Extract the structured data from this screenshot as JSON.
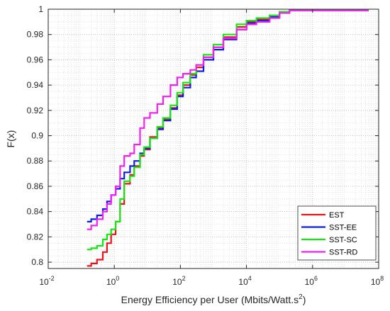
{
  "chart_data": {
    "type": "line",
    "title": "",
    "xlabel": "Energy Efficiency per User (Mbits/Watt.s",
    "xlabel_sup": "2",
    "xlabel_close": ")",
    "ylabel": "F(x)",
    "xscale": "log",
    "xlim": [
      0.01,
      100000000
    ],
    "ylim": [
      0.795,
      1.0
    ],
    "grid": "on (major and minor, dotted)",
    "legend_position": "bottom-right",
    "x_ticks": [
      {
        "value": 0.01,
        "base": "10",
        "exp": "-2"
      },
      {
        "value": 1,
        "base": "10",
        "exp": "0"
      },
      {
        "value": 100,
        "base": "10",
        "exp": "2"
      },
      {
        "value": 10000,
        "base": "10",
        "exp": "4"
      },
      {
        "value": 1000000,
        "base": "10",
        "exp": "6"
      },
      {
        "value": 100000000,
        "base": "10",
        "exp": "8"
      }
    ],
    "y_ticks": [
      {
        "value": 0.8,
        "label": "0.8"
      },
      {
        "value": 0.82,
        "label": "0.82"
      },
      {
        "value": 0.84,
        "label": "0.84"
      },
      {
        "value": 0.86,
        "label": "0.86"
      },
      {
        "value": 0.88,
        "label": "0.88"
      },
      {
        "value": 0.9,
        "label": "0.9"
      },
      {
        "value": 0.92,
        "label": "0.92"
      },
      {
        "value": 0.94,
        "label": "0.94"
      },
      {
        "value": 0.96,
        "label": "0.96"
      },
      {
        "value": 0.98,
        "label": "0.98"
      },
      {
        "value": 1.0,
        "label": "1"
      }
    ],
    "series": [
      {
        "name": "EST",
        "color": "#e8141a",
        "x": [
          0.15,
          0.2,
          0.3,
          0.45,
          0.6,
          0.8,
          1.1,
          1.5,
          2,
          3,
          4,
          6,
          8,
          12,
          20,
          30,
          50,
          80,
          120,
          200,
          300,
          500,
          1000,
          2000,
          5000,
          10000,
          20000,
          50000,
          100000,
          200000,
          1000000,
          10000000,
          50000000
        ],
        "y": [
          0.797,
          0.799,
          0.802,
          0.808,
          0.815,
          0.822,
          0.832,
          0.846,
          0.862,
          0.869,
          0.876,
          0.884,
          0.889,
          0.899,
          0.906,
          0.913,
          0.922,
          0.932,
          0.94,
          0.948,
          0.954,
          0.962,
          0.97,
          0.978,
          0.986,
          0.99,
          0.992,
          0.995,
          0.998,
          0.999,
          0.999,
          0.999,
          0.999
        ]
      },
      {
        "name": "SST-EE",
        "color": "#0a1fe0",
        "x": [
          0.15,
          0.2,
          0.3,
          0.45,
          0.6,
          0.8,
          1.1,
          1.5,
          2,
          3,
          4,
          6,
          8,
          12,
          20,
          30,
          50,
          80,
          120,
          200,
          300,
          500,
          1000,
          2000,
          5000,
          10000,
          20000,
          50000,
          100000,
          200000,
          1000000,
          10000000,
          50000000
        ],
        "y": [
          0.832,
          0.834,
          0.837,
          0.842,
          0.848,
          0.853,
          0.858,
          0.866,
          0.871,
          0.876,
          0.88,
          0.886,
          0.89,
          0.898,
          0.905,
          0.912,
          0.921,
          0.931,
          0.938,
          0.946,
          0.951,
          0.96,
          0.968,
          0.976,
          0.984,
          0.989,
          0.991,
          0.994,
          0.997,
          0.999,
          0.999,
          0.999,
          0.999
        ]
      },
      {
        "name": "SST-SC",
        "color": "#12e812",
        "x": [
          0.15,
          0.2,
          0.3,
          0.45,
          0.6,
          0.8,
          1.1,
          1.5,
          2,
          3,
          4,
          6,
          8,
          12,
          20,
          30,
          50,
          80,
          120,
          200,
          300,
          500,
          1000,
          2000,
          5000,
          10000,
          20000,
          50000,
          100000,
          200000,
          1000000,
          10000000,
          50000000
        ],
        "y": [
          0.81,
          0.811,
          0.813,
          0.818,
          0.822,
          0.826,
          0.832,
          0.85,
          0.864,
          0.868,
          0.875,
          0.885,
          0.891,
          0.898,
          0.907,
          0.914,
          0.924,
          0.934,
          0.942,
          0.949,
          0.956,
          0.964,
          0.972,
          0.98,
          0.988,
          0.991,
          0.993,
          0.995,
          0.998,
          0.999,
          0.999,
          0.999,
          0.999
        ]
      },
      {
        "name": "SST-RD",
        "color": "#f020f0",
        "x": [
          0.15,
          0.2,
          0.3,
          0.45,
          0.6,
          0.8,
          1.1,
          1.5,
          2,
          3,
          4,
          6,
          8,
          12,
          20,
          30,
          50,
          80,
          120,
          200,
          300,
          500,
          1000,
          2000,
          5000,
          10000,
          20000,
          50000,
          100000,
          200000,
          1000000,
          10000000,
          50000000
        ],
        "y": [
          0.826,
          0.829,
          0.834,
          0.84,
          0.846,
          0.853,
          0.86,
          0.876,
          0.884,
          0.886,
          0.893,
          0.906,
          0.914,
          0.918,
          0.925,
          0.931,
          0.94,
          0.946,
          0.949,
          0.952,
          0.956,
          0.962,
          0.97,
          0.977,
          0.984,
          0.988,
          0.99,
          0.993,
          0.997,
          0.999,
          0.999,
          0.999,
          0.999
        ]
      }
    ]
  }
}
